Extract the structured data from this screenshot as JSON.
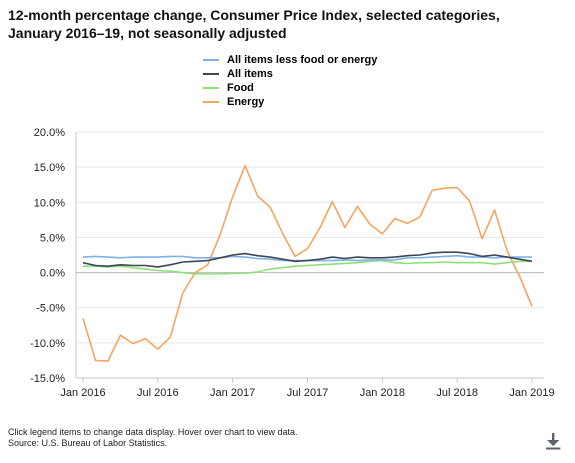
{
  "title_lines": [
    "12-month percentage change, Consumer Price Index, selected categories,",
    "January 2016–19, not seasonally adjusted"
  ],
  "legend": [
    {
      "name": "All items less food or energy",
      "color": "#7eb2e5"
    },
    {
      "name": "All items",
      "color": "#3d4753"
    },
    {
      "name": "Food",
      "color": "#8ee07a"
    },
    {
      "name": "Energy",
      "color": "#f4a55f"
    }
  ],
  "footer": {
    "note": "Click legend items to change data display. Hover over chart to view data.",
    "source": "Source: U.S. Bureau of Labor Statistics."
  },
  "chart_data": {
    "type": "line",
    "x_tick_labels": [
      "Jan 2016",
      "Jul 2016",
      "Jan 2017",
      "Jul 2017",
      "Jan 2018",
      "Jul 2018",
      "Jan 2019"
    ],
    "x_tick_index": [
      0,
      6,
      12,
      18,
      24,
      30,
      36
    ],
    "y_tick_labels": [
      "20.0%",
      "15.0%",
      "10.0%",
      "5.0%",
      "0.0%",
      "-5.0%",
      "-10.0%",
      "-15.0%"
    ],
    "y_ticks": [
      20,
      15,
      10,
      5,
      0,
      -5,
      -10,
      -15
    ],
    "ylim": [
      -15,
      20
    ],
    "x_count": 37,
    "grid": "horizontal",
    "series": [
      {
        "name": "All items less food or energy",
        "color": "#7eb2e5",
        "values": [
          2.2,
          2.3,
          2.2,
          2.1,
          2.2,
          2.2,
          2.2,
          2.3,
          2.3,
          2.1,
          2.1,
          2.1,
          2.3,
          2.2,
          2.0,
          1.9,
          1.7,
          1.7,
          1.7,
          1.7,
          1.7,
          1.8,
          1.7,
          1.8,
          1.8,
          1.8,
          2.1,
          2.1,
          2.2,
          2.3,
          2.4,
          2.2,
          2.2,
          2.1,
          2.2,
          2.2,
          2.2
        ]
      },
      {
        "name": "All items",
        "color": "#3d4753",
        "values": [
          1.4,
          1.0,
          0.9,
          1.1,
          1.0,
          1.0,
          0.8,
          1.1,
          1.5,
          1.6,
          1.7,
          2.1,
          2.5,
          2.7,
          2.4,
          2.2,
          1.9,
          1.6,
          1.7,
          1.9,
          2.2,
          2.0,
          2.2,
          2.1,
          2.1,
          2.2,
          2.4,
          2.5,
          2.8,
          2.9,
          2.9,
          2.7,
          2.3,
          2.5,
          2.2,
          1.9,
          1.6
        ]
      },
      {
        "name": "Food",
        "color": "#8ee07a",
        "values": [
          0.9,
          0.9,
          0.8,
          0.9,
          0.7,
          0.5,
          0.3,
          0.2,
          0.0,
          -0.2,
          -0.2,
          -0.2,
          -0.1,
          -0.1,
          0.1,
          0.5,
          0.7,
          0.9,
          1.0,
          1.1,
          1.2,
          1.3,
          1.4,
          1.6,
          1.7,
          1.4,
          1.3,
          1.4,
          1.4,
          1.5,
          1.4,
          1.4,
          1.4,
          1.2,
          1.4,
          1.6,
          1.6
        ]
      },
      {
        "name": "Energy",
        "color": "#f4a55f",
        "values": [
          -6.5,
          -12.5,
          -12.6,
          -8.9,
          -10.1,
          -9.4,
          -10.9,
          -9.2,
          -2.9,
          0.0,
          1.1,
          5.4,
          10.8,
          15.2,
          10.9,
          9.3,
          5.6,
          2.3,
          3.4,
          6.4,
          10.1,
          6.4,
          9.4,
          6.9,
          5.5,
          7.7,
          7.0,
          7.9,
          11.7,
          12.0,
          12.1,
          10.2,
          4.8,
          8.9,
          3.1,
          -0.5,
          -4.8
        ]
      }
    ]
  }
}
